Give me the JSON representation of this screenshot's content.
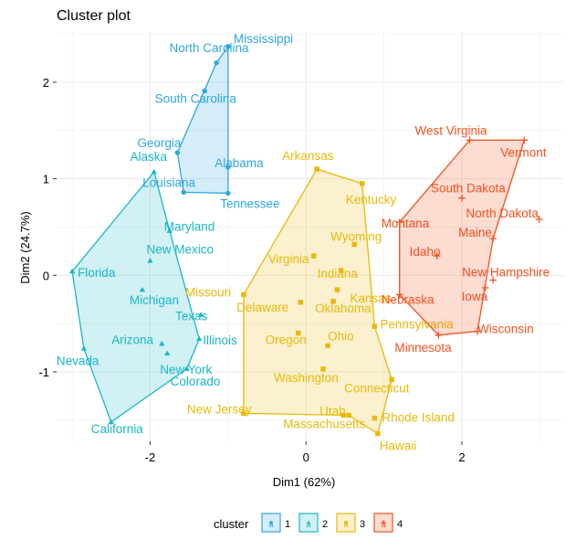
{
  "chart_data": {
    "type": "scatter",
    "title": "Cluster plot",
    "xlabel": "Dim1 (62%)",
    "ylabel": "Dim2 (24.7%)",
    "xlim": [
      -3.2,
      3.3
    ],
    "ylim": [
      -1.72,
      2.52
    ],
    "xticks": [
      -2,
      0,
      2
    ],
    "yticks": [
      -1,
      0,
      1,
      2
    ],
    "tick_labels_x": [
      "-2",
      "0",
      "2"
    ],
    "tick_labels_y": [
      "-1",
      "0",
      "1",
      "2"
    ],
    "grid": true,
    "legend": {
      "title": "cluster",
      "position": "bottom",
      "entries": [
        {
          "label": "1",
          "color": "#2FA6E0",
          "glyph": "a"
        },
        {
          "label": "2",
          "color": "#19B7C6",
          "glyph": "a"
        },
        {
          "label": "3",
          "color": "#E9B90A",
          "glyph": "a"
        },
        {
          "label": "4",
          "color": "#F4511E",
          "glyph": "a"
        }
      ]
    },
    "series": [
      {
        "name": "1",
        "color": "#2FA6E0",
        "fill": "#2FA6E0",
        "marker": "circle",
        "hull": [
          "Mississippi",
          "North Carolina",
          "Georgia",
          "Louisiana",
          "Tennessee",
          "Alabama"
        ],
        "points": [
          {
            "label": "Mississippi",
            "x": -1.0,
            "y": 2.37
          },
          {
            "label": "North Carolina",
            "x": -1.15,
            "y": 2.2
          },
          {
            "label": "South Carolina",
            "x": -1.3,
            "y": 1.91
          },
          {
            "label": "Georgia",
            "x": -1.65,
            "y": 1.27
          },
          {
            "label": "Alabama",
            "x": -1.0,
            "y": 1.12
          },
          {
            "label": "Louisiana",
            "x": -1.57,
            "y": 0.86
          },
          {
            "label": "Tennessee",
            "x": -1.0,
            "y": 0.85
          }
        ]
      },
      {
        "name": "2",
        "color": "#19B7C6",
        "fill": "#19B7C6",
        "marker": "triangle",
        "hull": [
          "Alaska",
          "Maryland",
          "Illinois",
          "Colorado",
          "California",
          "Nevada",
          "Florida"
        ],
        "points": [
          {
            "label": "Alaska",
            "x": -1.95,
            "y": 1.07
          },
          {
            "label": "Maryland",
            "x": -1.75,
            "y": 0.46
          },
          {
            "label": "New Mexico",
            "x": -2.0,
            "y": 0.15
          },
          {
            "label": "Florida",
            "x": -3.0,
            "y": 0.04
          },
          {
            "label": "Michigan",
            "x": -2.1,
            "y": -0.15
          },
          {
            "label": "Texas",
            "x": -1.35,
            "y": -0.41
          },
          {
            "label": "Illinois",
            "x": -1.37,
            "y": -0.66
          },
          {
            "label": "Arizona",
            "x": -1.85,
            "y": -0.71
          },
          {
            "label": "New York",
            "x": -1.78,
            "y": -0.81
          },
          {
            "label": "Nevada",
            "x": -2.85,
            "y": -0.76
          },
          {
            "label": "Colorado",
            "x": -1.53,
            "y": -0.97
          },
          {
            "label": "California",
            "x": -2.5,
            "y": -1.52
          }
        ]
      },
      {
        "name": "3",
        "color": "#E9B90A",
        "fill": "#E9B90A",
        "marker": "square",
        "hull": [
          "Arkansas",
          "Kentucky",
          "Pennsylvania",
          "Connecticut",
          "Hawaii",
          "Massachusetts",
          "New Jersey",
          "Missouri"
        ],
        "points": [
          {
            "label": "Arkansas",
            "x": 0.14,
            "y": 1.1
          },
          {
            "label": "Kentucky",
            "x": 0.72,
            "y": 0.95
          },
          {
            "label": "Wyoming",
            "x": 0.62,
            "y": 0.32
          },
          {
            "label": "Virginia",
            "x": 0.1,
            "y": 0.2
          },
          {
            "label": "Indiana",
            "x": 0.45,
            "y": 0.05
          },
          {
            "label": "Missouri",
            "x": -0.8,
            "y": -0.2
          },
          {
            "label": "Kansas",
            "x": 0.4,
            "y": -0.15
          },
          {
            "label": "Delaware",
            "x": -0.07,
            "y": -0.28
          },
          {
            "label": "Oklahoma",
            "x": 0.35,
            "y": -0.27
          },
          {
            "label": "Pennsylvania",
            "x": 0.88,
            "y": -0.53
          },
          {
            "label": "Oregon",
            "x": -0.1,
            "y": -0.6
          },
          {
            "label": "Ohio",
            "x": 0.28,
            "y": -0.73
          },
          {
            "label": "Washington",
            "x": 0.22,
            "y": -0.97
          },
          {
            "label": "Connecticut",
            "x": 1.1,
            "y": -1.08
          },
          {
            "label": "New Jersey",
            "x": -0.8,
            "y": -1.43
          },
          {
            "label": "Utah",
            "x": 0.48,
            "y": -1.45
          },
          {
            "label": "Massachusetts",
            "x": 0.55,
            "y": -1.45
          },
          {
            "label": "Rhode Island",
            "x": 0.88,
            "y": -1.48
          },
          {
            "label": "Hawaii",
            "x": 0.92,
            "y": -1.64
          }
        ]
      },
      {
        "name": "4",
        "color": "#F4511E",
        "fill": "#F4511E",
        "marker": "plus",
        "hull": [
          "West Virginia",
          "Vermont",
          "Maine",
          "Wisconsin",
          "Minnesota",
          "Nebraska",
          "Montana"
        ],
        "points": [
          {
            "label": "West Virginia",
            "x": 2.1,
            "y": 1.4
          },
          {
            "label": "Vermont",
            "x": 2.8,
            "y": 1.4
          },
          {
            "label": "South Dakota",
            "x": 2.0,
            "y": 0.8
          },
          {
            "label": "North Dakota",
            "x": 2.99,
            "y": 0.58
          },
          {
            "label": "Montana",
            "x": 1.2,
            "y": 0.55
          },
          {
            "label": "Maine",
            "x": 2.4,
            "y": 0.38
          },
          {
            "label": "Idaho",
            "x": 1.68,
            "y": 0.2
          },
          {
            "label": "New Hampshire",
            "x": 2.4,
            "y": -0.05
          },
          {
            "label": "Iowa",
            "x": 2.3,
            "y": -0.13
          },
          {
            "label": "Nebraska",
            "x": 1.2,
            "y": -0.2
          },
          {
            "label": "Wisconsin",
            "x": 2.2,
            "y": -0.58
          },
          {
            "label": "Minnesota",
            "x": 1.7,
            "y": -0.62
          }
        ]
      }
    ]
  }
}
